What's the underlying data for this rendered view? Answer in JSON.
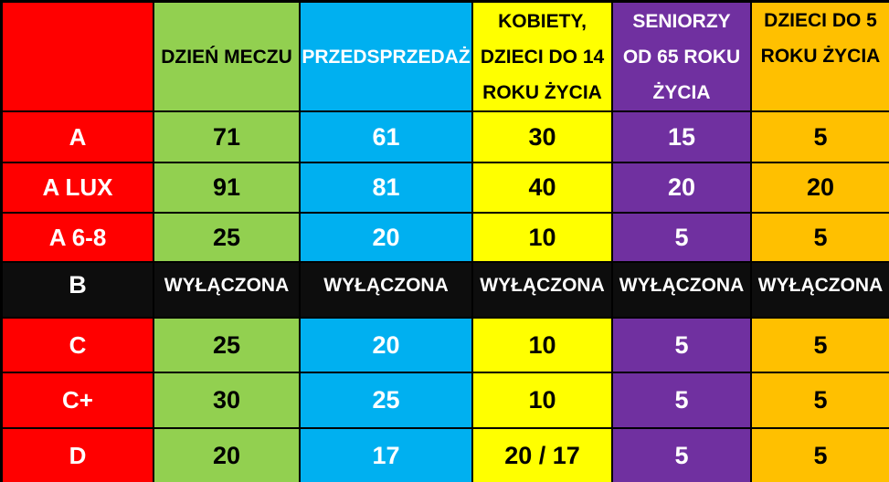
{
  "colors": {
    "zone_column_bg": "#FF0000",
    "matchday_bg": "#92D050",
    "presale_bg": "#00B0F0",
    "women_children14_bg": "#FFFF00",
    "seniors65_bg": "#7030A0",
    "children5_bg": "#FFC000",
    "disabled_row_bg": "#0D0D0D",
    "grid_border": "#000000",
    "light_text": "#FFFFFF",
    "dark_text": "#000000"
  },
  "table": {
    "headers": [
      {
        "lines": []
      },
      {
        "lines": [
          "DZIEŃ MECZU"
        ]
      },
      {
        "lines": [
          "PRZEDSPRZEDAŻ"
        ]
      },
      {
        "lines": [
          "KOBIETY,",
          "DZIECI DO 14",
          "ROKU ŻYCIA"
        ]
      },
      {
        "lines": [
          "SENIORZY",
          "OD 65 ROKU",
          "ŻYCIA"
        ]
      },
      {
        "lines": [
          "DZIECI DO 5",
          "ROKU ŻYCIA"
        ]
      }
    ],
    "rows": [
      {
        "label": "A",
        "cells": [
          "71",
          "61",
          "30",
          "15",
          "5"
        ]
      },
      {
        "label": "A LUX",
        "cells": [
          "91",
          "81",
          "40",
          "20",
          "20"
        ]
      },
      {
        "label": "A 6-8",
        "cells": [
          "25",
          "20",
          "10",
          "5",
          "5"
        ]
      },
      {
        "label": "B",
        "cells": [
          "WYŁĄCZONA",
          "WYŁĄCZONA",
          "WYŁĄCZONA",
          "WYŁĄCZONA",
          "WYŁĄCZONA"
        ],
        "disabled": true
      },
      {
        "label": "C",
        "cells": [
          "25",
          "20",
          "10",
          "5",
          "5"
        ]
      },
      {
        "label": "C+",
        "cells": [
          "30",
          "25",
          "10",
          "5",
          "5"
        ]
      },
      {
        "label": "D",
        "cells": [
          "20",
          "17",
          "20 / 17",
          "5",
          "5"
        ]
      }
    ]
  },
  "chart_data": {
    "type": "table",
    "title": "",
    "columns": [
      "",
      "DZIEŃ MECZU",
      "PRZEDSPRZEDAŻ",
      "KOBIETY, DZIECI DO 14 ROKU ŻYCIA",
      "SENIORZY OD 65 ROKU ŻYCIA",
      "DZIECI DO 5 ROKU ŻYCIA"
    ],
    "rows": [
      [
        "A",
        "71",
        "61",
        "30",
        "15",
        "5"
      ],
      [
        "A LUX",
        "91",
        "81",
        "40",
        "20",
        "20"
      ],
      [
        "A 6-8",
        "25",
        "20",
        "10",
        "5",
        "5"
      ],
      [
        "B",
        "WYŁĄCZONA",
        "WYŁĄCZONA",
        "WYŁĄCZONA",
        "WYŁĄCZONA",
        "WYŁĄCZONA"
      ],
      [
        "C",
        "25",
        "20",
        "10",
        "5",
        "5"
      ],
      [
        "C+",
        "30",
        "25",
        "10",
        "5",
        "5"
      ],
      [
        "D",
        "20",
        "17",
        "20 / 17",
        "5",
        "5"
      ]
    ]
  }
}
